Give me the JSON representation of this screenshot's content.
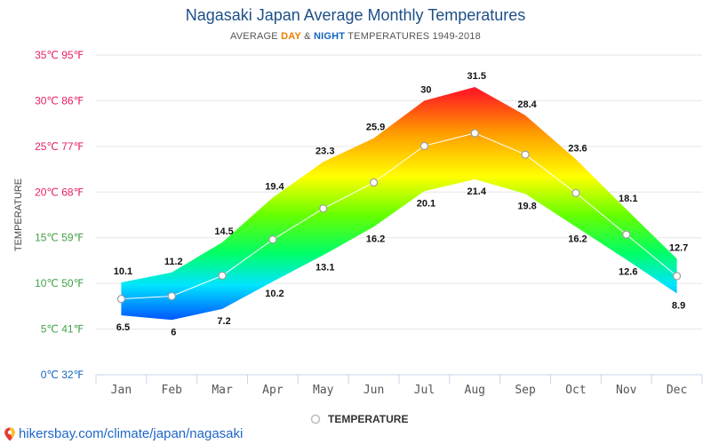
{
  "title": "Nagasaki Japan Average Monthly Temperatures",
  "subtitle": {
    "prefix": "AVERAGE ",
    "day": "DAY",
    "amp": " & ",
    "night": "NIGHT",
    "suffix": " TEMPERATURES 1949-2018"
  },
  "footer": {
    "url": "hikersbay.com/climate/japan/nagasaki"
  },
  "colors": {
    "title": "#1e4f86",
    "day": "#ef7d00",
    "night": "#1565c0",
    "footer": "#1e66c8"
  },
  "chart_data": {
    "type": "area",
    "title": "Nagasaki Japan Average Monthly Temperatures",
    "ylabel": "TEMPERATURE",
    "xlabel": "",
    "categories": [
      "Jan",
      "Feb",
      "Mar",
      "Apr",
      "May",
      "Jun",
      "Jul",
      "Aug",
      "Sep",
      "Oct",
      "Nov",
      "Dec"
    ],
    "ylim": [
      0,
      35
    ],
    "y_ticks": [
      {
        "value": 0,
        "label": "0℃ 32℉",
        "color": "#1565c0"
      },
      {
        "value": 5,
        "label": "5℃ 41℉",
        "color": "#43a047"
      },
      {
        "value": 10,
        "label": "10℃ 50℉",
        "color": "#43a047"
      },
      {
        "value": 15,
        "label": "15℃ 59℉",
        "color": "#43a047"
      },
      {
        "value": 20,
        "label": "20℃ 68℉",
        "color": "#e91e63"
      },
      {
        "value": 25,
        "label": "25℃ 77℉",
        "color": "#e91e63"
      },
      {
        "value": 30,
        "label": "30℃ 86℉",
        "color": "#e91e63"
      },
      {
        "value": 35,
        "label": "35℃ 95℉",
        "color": "#e91e63"
      }
    ],
    "series": [
      {
        "name": "DAY",
        "values": [
          10.1,
          11.2,
          14.5,
          19.4,
          23.3,
          25.9,
          30,
          31.5,
          28.4,
          23.6,
          18.1,
          12.7
        ]
      },
      {
        "name": "NIGHT",
        "values": [
          6.5,
          6,
          7.2,
          10.2,
          13.1,
          16.2,
          20.1,
          21.4,
          19.8,
          16.2,
          12.6,
          8.9
        ]
      },
      {
        "name": "TEMPERATURE",
        "values": [
          8.3,
          8.6,
          10.85,
          14.8,
          18.2,
          21.05,
          25.05,
          26.45,
          24.1,
          19.9,
          15.35,
          10.8
        ]
      }
    ],
    "legend": {
      "label": "TEMPERATURE",
      "position": "bottom-center"
    },
    "grid": true
  }
}
